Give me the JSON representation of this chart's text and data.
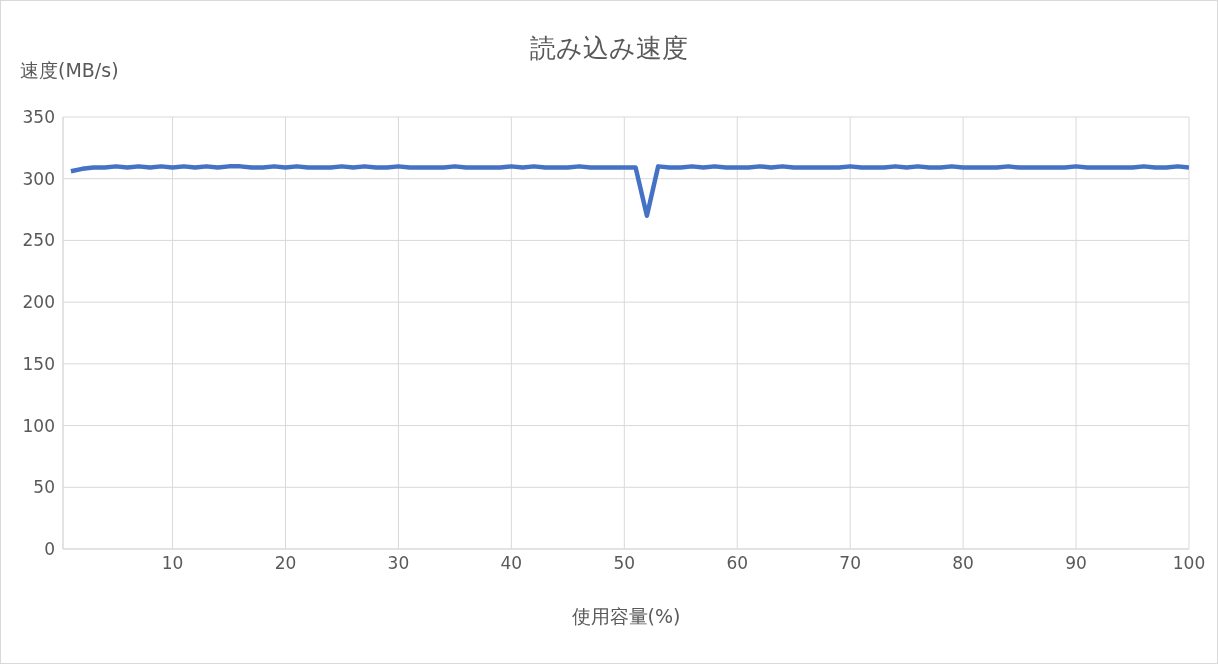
{
  "chart_data": {
    "type": "line",
    "title": "読み込み速度",
    "xlabel": "使用容量(%)",
    "ylabel": "速度(MB/s)",
    "x": [
      1,
      2,
      3,
      4,
      5,
      6,
      7,
      8,
      9,
      10,
      11,
      12,
      13,
      14,
      15,
      16,
      17,
      18,
      19,
      20,
      21,
      22,
      23,
      24,
      25,
      26,
      27,
      28,
      29,
      30,
      31,
      32,
      33,
      34,
      35,
      36,
      37,
      38,
      39,
      40,
      41,
      42,
      43,
      44,
      45,
      46,
      47,
      48,
      49,
      50,
      51,
      52,
      53,
      54,
      55,
      56,
      57,
      58,
      59,
      60,
      61,
      62,
      63,
      64,
      65,
      66,
      67,
      68,
      69,
      70,
      71,
      72,
      73,
      74,
      75,
      76,
      77,
      78,
      79,
      80,
      81,
      82,
      83,
      84,
      85,
      86,
      87,
      88,
      89,
      90,
      91,
      92,
      93,
      94,
      95,
      96,
      97,
      98,
      99,
      100
    ],
    "series": [
      {
        "color": "#4472c4",
        "values": [
          306,
          308,
          309,
          309,
          310,
          309,
          310,
          309,
          310,
          309,
          310,
          309,
          310,
          309,
          310,
          310,
          309,
          309,
          310,
          309,
          310,
          309,
          309,
          309,
          310,
          309,
          310,
          309,
          309,
          310,
          309,
          309,
          309,
          309,
          310,
          309,
          309,
          309,
          309,
          310,
          309,
          310,
          309,
          309,
          309,
          310,
          309,
          309,
          309,
          309,
          309,
          270,
          310,
          309,
          309,
          310,
          309,
          310,
          309,
          309,
          309,
          310,
          309,
          310,
          309,
          309,
          309,
          309,
          309,
          310,
          309,
          309,
          309,
          310,
          309,
          310,
          309,
          309,
          310,
          309,
          309,
          309,
          309,
          310,
          309,
          309,
          309,
          309,
          309,
          310,
          309,
          309,
          309,
          309,
          309,
          310,
          309,
          309,
          310,
          309
        ]
      }
    ],
    "xlim": [
      0.3,
      100
    ],
    "xticks": [
      10,
      20,
      30,
      40,
      50,
      60,
      70,
      80,
      90,
      100
    ],
    "ylim": [
      0,
      350
    ],
    "yticks": [
      0,
      50,
      100,
      150,
      200,
      250,
      300,
      350
    ],
    "grid": true,
    "legend": false,
    "marker": "none",
    "line_style": "solid"
  }
}
